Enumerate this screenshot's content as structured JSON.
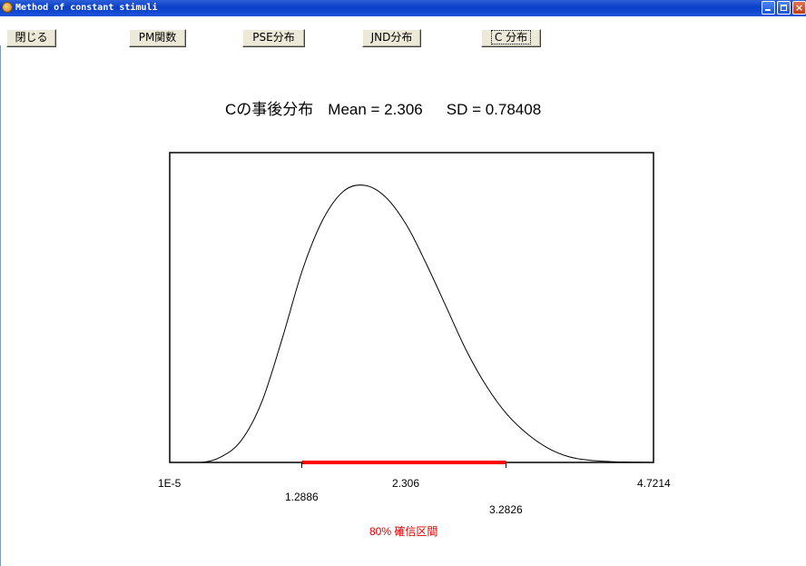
{
  "window": {
    "title": "Method of constant stimuli",
    "controls": [
      "minimize",
      "maximize",
      "close"
    ]
  },
  "toolbar": {
    "buttons": [
      {
        "label": "閉じる",
        "active": false
      },
      {
        "label": "PM関数",
        "active": false
      },
      {
        "label": "PSE分布",
        "active": false
      },
      {
        "label": "JND分布",
        "active": false
      },
      {
        "label": "C 分布",
        "active": true
      }
    ]
  },
  "heading": {
    "title": "Cの事後分布",
    "mean_text": "Mean = 2.306",
    "sd_text": "SD = 0.78408"
  },
  "chart_data": {
    "type": "area",
    "title": "Cの事後分布",
    "mean": 2.306,
    "sd": 0.78408,
    "xlim": [
      1e-05,
      4.7214
    ],
    "x_ticks": [
      "1E-5",
      "1.2886",
      "2.306",
      "3.2826",
      "4.7214"
    ],
    "curve": {
      "x": [
        1e-05,
        0.3,
        0.5,
        0.7,
        0.9,
        1.1,
        1.3,
        1.5,
        1.7,
        1.9,
        2.1,
        2.306,
        2.5,
        2.7,
        2.9,
        3.1,
        3.3,
        3.5,
        3.7,
        3.9,
        4.1,
        4.3,
        4.5,
        4.7214
      ],
      "density": [
        0.0,
        0.0,
        0.02,
        0.08,
        0.22,
        0.45,
        0.7,
        0.88,
        0.98,
        1.0,
        0.96,
        0.86,
        0.72,
        0.56,
        0.4,
        0.27,
        0.17,
        0.1,
        0.05,
        0.02,
        0.008,
        0.003,
        0.001,
        0.0
      ]
    },
    "credible_interval": {
      "label": "80% 確信区間",
      "lower": 1.2886,
      "upper": 3.2826,
      "color": "#ff0000"
    },
    "line_color": "#000000"
  }
}
